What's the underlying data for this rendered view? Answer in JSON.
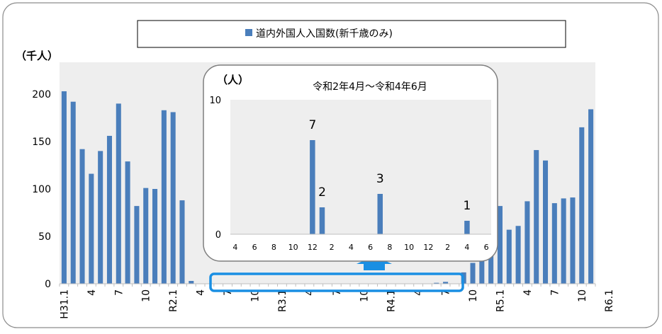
{
  "chart_data": [
    {
      "type": "bar",
      "title": "道内外国人入国数(新千歳のみ)",
      "ylabel": "（千人）",
      "ylim": [
        0,
        200
      ],
      "y_ticks": [
        "0",
        "50",
        "100",
        "150",
        "200"
      ],
      "x_ticks": [
        "H31.1",
        "4",
        "7",
        "10",
        "R2.1",
        "4",
        "7",
        "10",
        "R3.1",
        "4",
        "7",
        "10",
        "R4.1",
        "4",
        "7",
        "10",
        "R5.1",
        "4",
        "7",
        "10",
        "R6.1"
      ],
      "legend": "top",
      "grid": false,
      "colors": {
        "bar": "#4a7ebb",
        "plot_bg": "#eeeeee",
        "highlight": "#1a8fe3"
      },
      "series": [
        {
          "name": "道内外国人入国数(新千歳のみ)",
          "values": [
            203,
            192,
            142,
            116,
            140,
            156,
            190,
            129,
            82,
            101,
            100,
            183,
            181,
            88,
            3,
            0,
            0,
            0,
            0,
            0,
            0,
            0,
            0,
            0,
            0,
            0,
            0,
            0,
            0,
            0,
            0,
            0,
            0,
            0,
            0,
            0,
            0,
            0,
            0,
            0,
            0,
            1,
            2,
            0,
            12,
            22,
            27,
            30,
            82,
            57,
            61,
            87,
            141,
            130,
            85,
            90,
            91,
            165,
            184
          ]
        }
      ]
    },
    {
      "type": "bar",
      "title": "令和2年4月～令和4年6月",
      "ylabel": "（人）",
      "ylim": [
        0,
        10
      ],
      "y_ticks": [
        "0",
        "10"
      ],
      "x_ticks": [
        "4",
        "6",
        "8",
        "10",
        "12",
        "2",
        "4",
        "6",
        "8",
        "10",
        "12",
        "2",
        "4",
        "6"
      ],
      "series": [
        {
          "values": [
            0,
            0,
            0,
            0,
            0,
            0,
            0,
            0,
            7,
            2,
            0,
            0,
            0,
            0,
            0,
            3,
            0,
            0,
            0,
            0,
            0,
            0,
            0,
            0,
            1,
            0,
            0
          ],
          "labels": [
            "7",
            "2",
            "3",
            "1"
          ]
        }
      ]
    }
  ]
}
